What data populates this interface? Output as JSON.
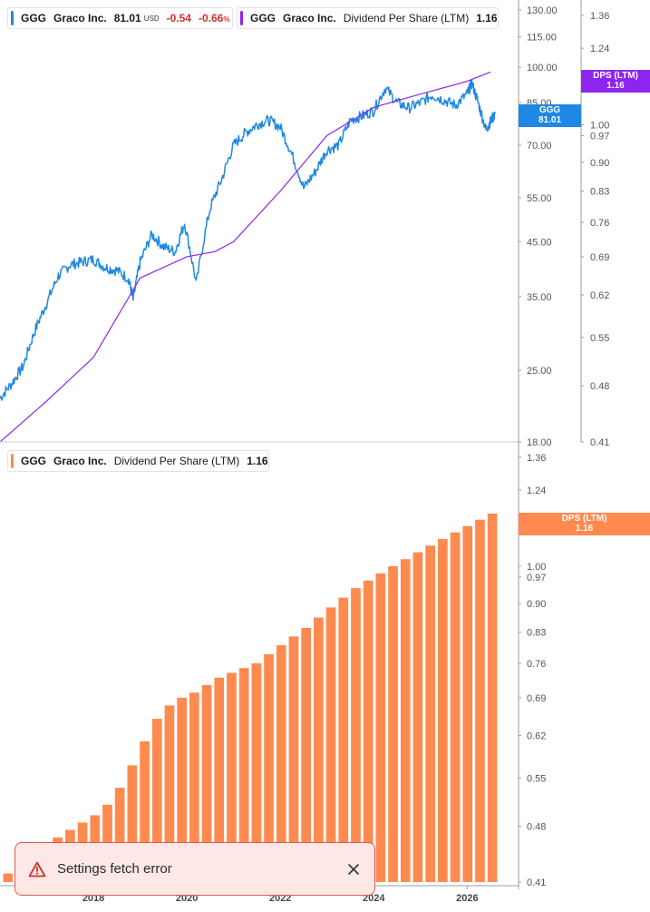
{
  "legend_price": {
    "ticker": "GGG",
    "company": "Graco Inc.",
    "price": "81.01",
    "currency": "USD",
    "change": "-0.54",
    "change_pct": "-0.66",
    "pct_sign": "%",
    "color": "#1e88e5"
  },
  "legend_dps_top": {
    "ticker": "GGG",
    "company": "Graco Inc.",
    "metric": "Dividend Per Share (LTM)",
    "value": "1.16",
    "color": "#8e24f0"
  },
  "legend_dps_bottom": {
    "ticker": "GGG",
    "company": "Graco Inc.",
    "metric": "Dividend Per Share (LTM)",
    "value": "1.16",
    "color": "#ff8a50"
  },
  "tags": {
    "price": {
      "label": "GGG",
      "value": "81.01",
      "color": "#1e88e5"
    },
    "dps_top": {
      "label": "DPS (LTM)",
      "value": "1.16",
      "color": "#8e24f0"
    },
    "dps_bottom": {
      "label": "DPS (LTM)",
      "value": "1.16",
      "color": "#ff8a50"
    }
  },
  "toast": {
    "message": "Settings fetch error",
    "icon": "warning-triangle-icon",
    "close_icon": "close-icon",
    "color": "#e05a4f"
  },
  "chart_data": [
    {
      "type": "line",
      "scale": "log",
      "series": [
        {
          "name": "GGG",
          "color": "#1e88e5",
          "x": [
            2016.0,
            2016.25,
            2016.5,
            2016.75,
            2017.0,
            2017.25,
            2017.5,
            2017.75,
            2018.0,
            2018.25,
            2018.5,
            2018.75,
            2018.85,
            2019.0,
            2019.25,
            2019.5,
            2019.75,
            2019.95,
            2020.2,
            2020.5,
            2020.75,
            2021.0,
            2021.25,
            2021.5,
            2021.75,
            2022.0,
            2022.25,
            2022.5,
            2022.75,
            2023.0,
            2023.25,
            2023.5,
            2023.75,
            2024.0,
            2024.25,
            2024.5,
            2024.75,
            2025.0,
            2025.25,
            2025.5,
            2025.75,
            2026.0,
            2026.1,
            2026.25,
            2026.4,
            2026.5,
            2026.6
          ],
          "values": [
            22.0,
            23.5,
            25.5,
            30.0,
            34.0,
            38.5,
            40.5,
            41.0,
            41.5,
            40.0,
            39.5,
            38.0,
            34.5,
            41.0,
            46.5,
            44.0,
            43.0,
            49.0,
            37.0,
            52.5,
            60.0,
            70.0,
            74.0,
            77.0,
            78.5,
            76.0,
            67.0,
            57.5,
            62.0,
            68.5,
            70.0,
            78.5,
            80.0,
            82.0,
            91.0,
            85.0,
            83.0,
            85.0,
            88.0,
            86.0,
            84.0,
            88.5,
            93.0,
            84.0,
            75.0,
            78.0,
            81.01
          ]
        },
        {
          "name": "DPS (LTM)",
          "color": "#8e24f0",
          "x": [
            2016.0,
            2017.0,
            2018.0,
            2019.0,
            2020.0,
            2020.6,
            2021.0,
            2022.0,
            2023.0,
            2024.0,
            2025.0,
            2026.0,
            2026.5
          ],
          "values": [
            0.41,
            0.46,
            0.52,
            0.65,
            0.69,
            0.7,
            0.72,
            0.83,
            0.97,
            1.05,
            1.09,
            1.13,
            1.16
          ]
        }
      ],
      "y_ticks": [
        18.0,
        25.0,
        35.0,
        45.0,
        55.0,
        70.0,
        85.0,
        100.0,
        115.0,
        130.0
      ],
      "ylim": [
        18,
        136
      ],
      "y2_ticks": [
        0.41,
        0.48,
        0.55,
        0.62,
        0.69,
        0.76,
        0.83,
        0.9,
        0.97,
        1.0,
        1.12,
        1.24,
        1.36
      ],
      "y2lim": [
        0.41,
        1.42
      ],
      "grid": false
    },
    {
      "type": "bar",
      "scale": "log",
      "series": [
        {
          "name": "DPS (LTM)",
          "color": "#ff8a50",
          "values": [
            0.42,
            0.43,
            0.44,
            0.455,
            0.465,
            0.475,
            0.485,
            0.495,
            0.51,
            0.535,
            0.57,
            0.61,
            0.65,
            0.675,
            0.69,
            0.7,
            0.715,
            0.73,
            0.74,
            0.75,
            0.76,
            0.78,
            0.8,
            0.82,
            0.84,
            0.865,
            0.89,
            0.915,
            0.94,
            0.96,
            0.98,
            1.0,
            1.02,
            1.04,
            1.06,
            1.08,
            1.1,
            1.12,
            1.14,
            1.16
          ]
        }
      ],
      "x_ticks": [
        "2018",
        "2020",
        "2022",
        "2024",
        "2026"
      ],
      "y_ticks": [
        0.41,
        0.48,
        0.55,
        0.62,
        0.69,
        0.76,
        0.83,
        0.9,
        0.97,
        1.0,
        1.12,
        1.24,
        1.36
      ],
      "ylim": [
        0.41,
        1.42
      ],
      "grid": false
    }
  ]
}
